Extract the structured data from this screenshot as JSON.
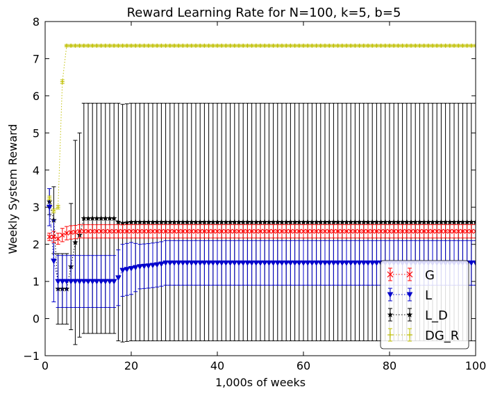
{
  "chart_data": {
    "type": "line",
    "title": "Reward Learning Rate for N=100, k=5, b=5",
    "xlabel": "1,000s of weeks",
    "ylabel": "Weekly System Reward",
    "xlim": [
      0,
      100
    ],
    "ylim": [
      -1,
      8
    ],
    "xticks": [
      0,
      20,
      40,
      60,
      80,
      100
    ],
    "yticks": [
      -1,
      0,
      1,
      2,
      3,
      4,
      5,
      6,
      7,
      8
    ],
    "xtick_labels": [
      "0",
      "20",
      "40",
      "60",
      "80",
      "100"
    ],
    "ytick_labels": [
      "−1",
      "0",
      "1",
      "2",
      "3",
      "4",
      "5",
      "6",
      "7",
      "8"
    ],
    "grid": false,
    "legend_position": "lower-right",
    "series": [
      {
        "name": "G",
        "color": "#ff0000",
        "marker": "x",
        "linestyle": "dotted",
        "x": [
          1,
          2,
          3,
          4,
          5,
          6,
          7,
          8,
          10,
          15,
          20,
          30,
          40,
          50,
          60,
          70,
          80,
          90,
          100
        ],
        "y": [
          2.2,
          2.2,
          2.15,
          2.25,
          2.3,
          2.32,
          2.33,
          2.35,
          2.35,
          2.35,
          2.35,
          2.35,
          2.35,
          2.35,
          2.35,
          2.35,
          2.35,
          2.35,
          2.35
        ],
        "err": [
          0.1,
          0.15,
          0.15,
          0.18,
          0.18,
          0.18,
          0.18,
          0.18,
          0.18,
          0.18,
          0.18,
          0.18,
          0.18,
          0.18,
          0.18,
          0.18,
          0.18,
          0.18,
          0.18
        ]
      },
      {
        "name": "L",
        "color": "#0000cc",
        "marker": "triangle-down",
        "linestyle": "dotted",
        "x": [
          1,
          2,
          3,
          4,
          5,
          10,
          16,
          17,
          18,
          20,
          22,
          24,
          26,
          27,
          28,
          30,
          40,
          50,
          60,
          70,
          80,
          90,
          100
        ],
        "y": [
          3.0,
          1.55,
          1.0,
          1.0,
          1.0,
          1.0,
          1.0,
          1.1,
          1.3,
          1.35,
          1.4,
          1.42,
          1.45,
          1.47,
          1.5,
          1.5,
          1.5,
          1.5,
          1.5,
          1.5,
          1.5,
          1.5,
          1.5
        ],
        "err": [
          0.5,
          1.1,
          0.7,
          0.7,
          0.7,
          0.7,
          0.7,
          0.75,
          0.7,
          0.7,
          0.6,
          0.6,
          0.6,
          0.6,
          0.6,
          0.6,
          0.6,
          0.6,
          0.6,
          0.6,
          0.6,
          0.6,
          0.6
        ]
      },
      {
        "name": "L_D",
        "color": "#000000",
        "marker": "star",
        "linestyle": "dotted",
        "x": [
          1,
          2,
          3,
          4,
          5,
          6,
          7,
          8,
          9,
          10,
          16,
          17,
          18,
          20,
          30,
          40,
          50,
          60,
          70,
          80,
          90,
          100
        ],
        "y": [
          3.15,
          2.65,
          0.8,
          0.8,
          0.8,
          1.4,
          2.05,
          2.25,
          2.7,
          2.7,
          2.7,
          2.6,
          2.57,
          2.6,
          2.6,
          2.6,
          2.6,
          2.6,
          2.6,
          2.6,
          2.6,
          2.6
        ],
        "err": [
          0.35,
          0.9,
          0.95,
          0.95,
          0.95,
          1.7,
          2.75,
          2.75,
          3.1,
          3.1,
          3.1,
          3.2,
          3.2,
          3.2,
          3.2,
          3.2,
          3.2,
          3.2,
          3.2,
          3.2,
          3.2,
          3.2
        ]
      },
      {
        "name": "DG_R",
        "color": "#bfbf00",
        "marker": "plus",
        "linestyle": "dotted",
        "x": [
          1,
          2,
          3,
          4,
          5,
          6,
          10,
          20,
          30,
          40,
          50,
          60,
          70,
          80,
          90,
          100
        ],
        "y": [
          3.25,
          2.9,
          3.0,
          6.38,
          7.35,
          7.35,
          7.35,
          7.35,
          7.35,
          7.35,
          7.35,
          7.35,
          7.35,
          7.35,
          7.35,
          7.35
        ],
        "err": [
          0.05,
          0.05,
          0.05,
          0.05,
          0.03,
          0.03,
          0.03,
          0.03,
          0.03,
          0.03,
          0.03,
          0.03,
          0.03,
          0.03,
          0.03,
          0.03
        ]
      }
    ]
  }
}
